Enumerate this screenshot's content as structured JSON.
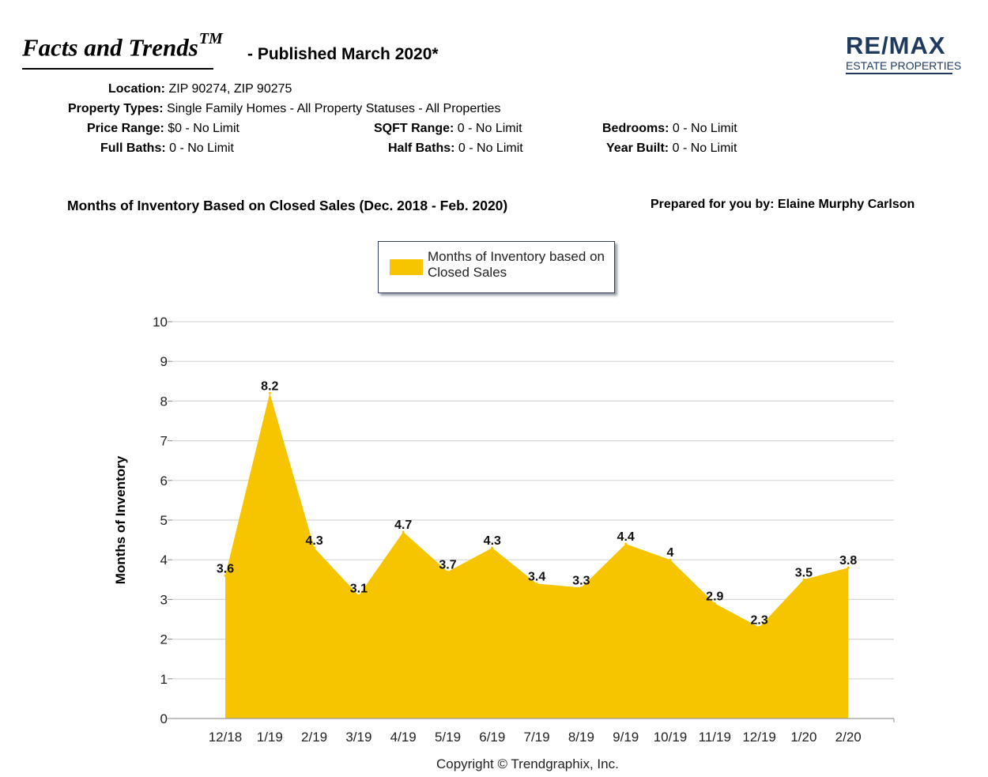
{
  "header": {
    "title": "Facts and Trends",
    "title_mark": "TM",
    "published": "- Published March 2020*",
    "logo_main": "RE/MAX",
    "logo_sub": "ESTATE PROPERTIES"
  },
  "criteria": {
    "location_label": "Location:",
    "location_value": "ZIP 90274, ZIP 90275",
    "types_label": "Property Types:",
    "types_value": "Single Family Homes - All Property Statuses - All Properties",
    "price_label": "Price Range:",
    "price_value": "$0 - No Limit",
    "sqft_label": "SQFT Range:",
    "sqft_value": "0 - No Limit",
    "bedrooms_label": "Bedrooms:",
    "bedrooms_value": "0 - No Limit",
    "fullbaths_label": "Full Baths:",
    "fullbaths_value": "0 - No Limit",
    "halfbaths_label": "Half Baths:",
    "halfbaths_value": "0 - No Limit",
    "yearbuilt_label": "Year Built:",
    "yearbuilt_value": "0 - No Limit"
  },
  "report": {
    "chart_heading": "Months of Inventory Based on Closed Sales (Dec. 2018 - Feb. 2020)",
    "prepared_by": "Prepared for you by: Elaine Murphy Carlson",
    "copyright": "Copyright © Trendgraphix, Inc."
  },
  "colors": {
    "area_fill": "#f7c400",
    "grid": "#d6d6d6",
    "logo": "#1f3a5f"
  },
  "chart_data": {
    "type": "area",
    "categories": [
      "12/18",
      "1/19",
      "2/19",
      "3/19",
      "4/19",
      "5/19",
      "6/19",
      "7/19",
      "8/19",
      "9/19",
      "10/19",
      "11/19",
      "12/19",
      "1/20",
      "2/20"
    ],
    "series": [
      {
        "name": "Months of Inventory based on Closed Sales",
        "values": [
          3.6,
          8.2,
          4.3,
          3.1,
          4.7,
          3.7,
          4.3,
          3.4,
          3.3,
          4.4,
          4,
          2.9,
          2.3,
          3.5,
          3.8
        ],
        "labels": [
          "3.6",
          "8.2",
          "4.3",
          "3.1",
          "4.7",
          "3.7",
          "4.3",
          "3.4",
          "3.3",
          "4.4",
          "4",
          "2.9",
          "2.3",
          "3.5",
          "3.8"
        ]
      }
    ],
    "ylabel": "Months of Inventory",
    "ylim": [
      0,
      10
    ],
    "yticks": [
      "0",
      "1",
      "2",
      "3",
      "4",
      "5",
      "6",
      "7",
      "8",
      "9",
      "10"
    ],
    "grid": true,
    "legend_position": "top-center"
  }
}
